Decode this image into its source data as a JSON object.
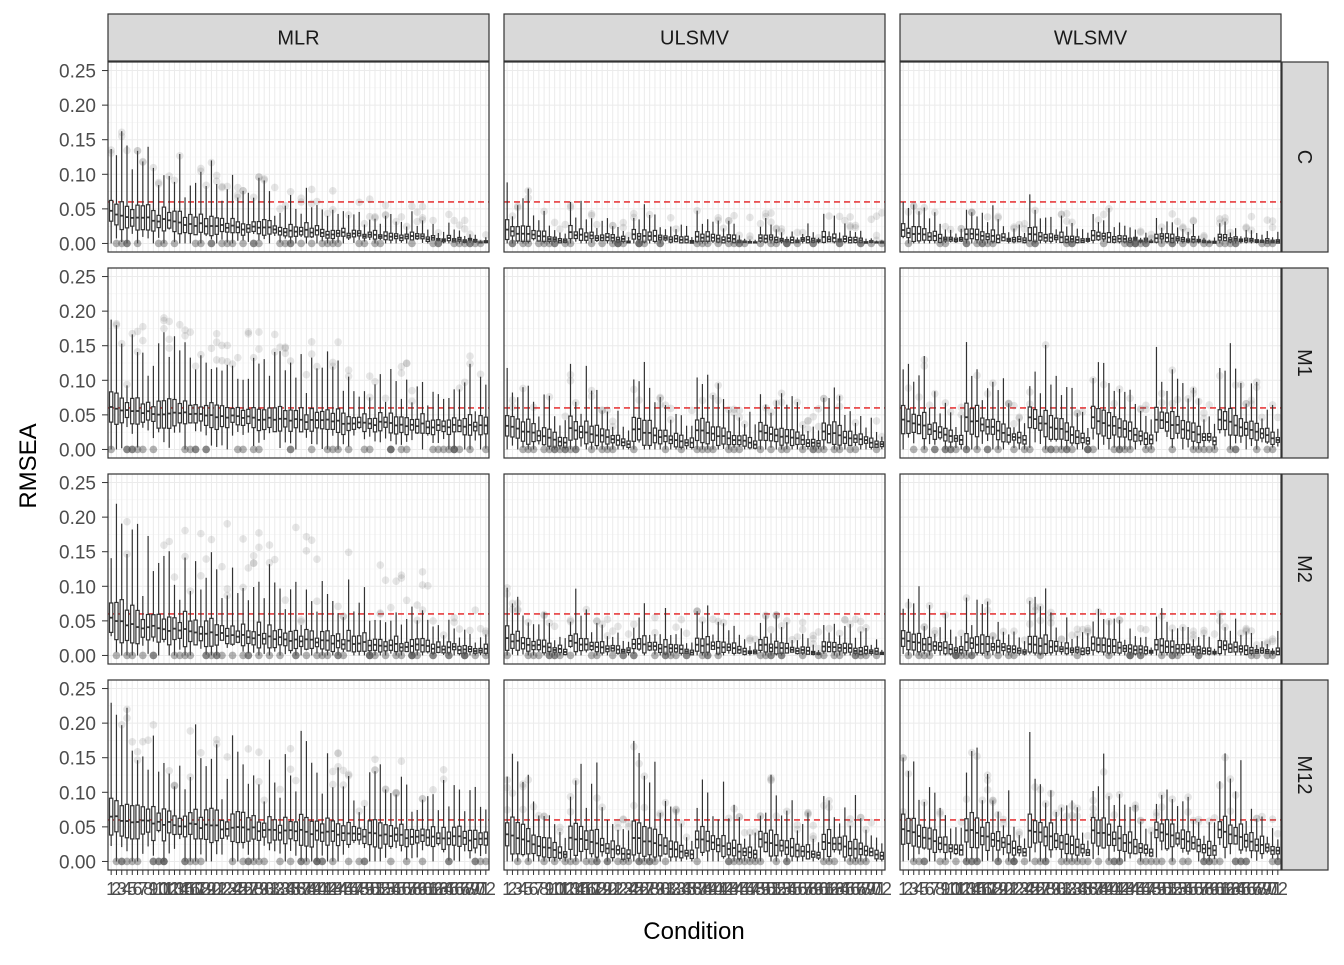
{
  "chart_data": {
    "type": "boxplot",
    "xlabel": "Condition",
    "ylabel": "RMSEA",
    "ylim": [
      0,
      0.25
    ],
    "yticks": [
      "0.00",
      "0.05",
      "0.10",
      "0.15",
      "0.20",
      "0.25"
    ],
    "column_facets": [
      "MLR",
      "ULSMV",
      "WLSMV"
    ],
    "row_facets": [
      "C",
      "M1",
      "M2",
      "M12"
    ],
    "n_conditions": 72,
    "x_tick_labels": [
      "1",
      "2",
      "3",
      "4",
      "5",
      "6",
      "7",
      "8",
      "9",
      "10",
      "11",
      "12",
      "13",
      "14",
      "15",
      "16",
      "17",
      "18",
      "19",
      "20",
      "21",
      "22",
      "23",
      "24",
      "25",
      "26",
      "27",
      "28",
      "29",
      "30",
      "31",
      "32",
      "33",
      "34",
      "35",
      "36",
      "37",
      "38",
      "39",
      "40",
      "41",
      "42",
      "43",
      "44",
      "45",
      "46",
      "47",
      "48",
      "49",
      "50",
      "51",
      "52",
      "53",
      "54",
      "55",
      "56",
      "57",
      "58",
      "59",
      "60",
      "61",
      "62",
      "63",
      "64",
      "65",
      "66",
      "67",
      "68",
      "69",
      "70",
      "71",
      "72"
    ],
    "reference_line": {
      "y": 0.06,
      "style": "dashed",
      "color": "#e41a1c"
    },
    "grid": true,
    "colors": {
      "panel_border": "#333333",
      "strip_fill": "#d9d9d9",
      "grid": "#ebebeb",
      "box": "#333333",
      "outlier": "#555555",
      "ref_line": "#e41a1c"
    },
    "panels": [
      {
        "row": "C",
        "col": "MLR",
        "median_start": 0.045,
        "median_end": 0.004,
        "spread": 0.4,
        "outlier_max": 0.11,
        "pattern": "smooth"
      },
      {
        "row": "C",
        "col": "ULSMV",
        "median_start": 0.012,
        "median_end": 0.004,
        "spread": 0.6,
        "outlier_max": 0.045,
        "pattern": "cyclic"
      },
      {
        "row": "C",
        "col": "WLSMV",
        "median_start": 0.012,
        "median_end": 0.004,
        "spread": 0.6,
        "outlier_max": 0.045,
        "pattern": "cyclic"
      },
      {
        "row": "M1",
        "col": "MLR",
        "median_start": 0.062,
        "median_end": 0.032,
        "spread": 0.3,
        "outlier_max": 0.2,
        "pattern": "smooth"
      },
      {
        "row": "M1",
        "col": "ULSMV",
        "median_start": 0.022,
        "median_end": 0.015,
        "spread": 0.55,
        "outlier_max": 0.06,
        "pattern": "cyclic"
      },
      {
        "row": "M1",
        "col": "WLSMV",
        "median_start": 0.028,
        "median_end": 0.028,
        "spread": 0.4,
        "outlier_max": 0.065,
        "pattern": "cyclic"
      },
      {
        "row": "M2",
        "col": "MLR",
        "median_start": 0.052,
        "median_end": 0.008,
        "spread": 0.5,
        "outlier_max": 0.24,
        "pattern": "smooth"
      },
      {
        "row": "M2",
        "col": "ULSMV",
        "median_start": 0.015,
        "median_end": 0.008,
        "spread": 0.6,
        "outlier_max": 0.055,
        "pattern": "cyclic"
      },
      {
        "row": "M2",
        "col": "WLSMV",
        "median_start": 0.015,
        "median_end": 0.008,
        "spread": 0.6,
        "outlier_max": 0.04,
        "pattern": "cyclic"
      },
      {
        "row": "M12",
        "col": "MLR",
        "median_start": 0.065,
        "median_end": 0.032,
        "spread": 0.35,
        "outlier_max": 0.205,
        "pattern": "smooth"
      },
      {
        "row": "M12",
        "col": "ULSMV",
        "median_start": 0.025,
        "median_end": 0.018,
        "spread": 0.55,
        "outlier_max": 0.065,
        "pattern": "cyclic"
      },
      {
        "row": "M12",
        "col": "WLSMV",
        "median_start": 0.03,
        "median_end": 0.028,
        "spread": 0.4,
        "outlier_max": 0.065,
        "pattern": "cyclic"
      }
    ]
  }
}
